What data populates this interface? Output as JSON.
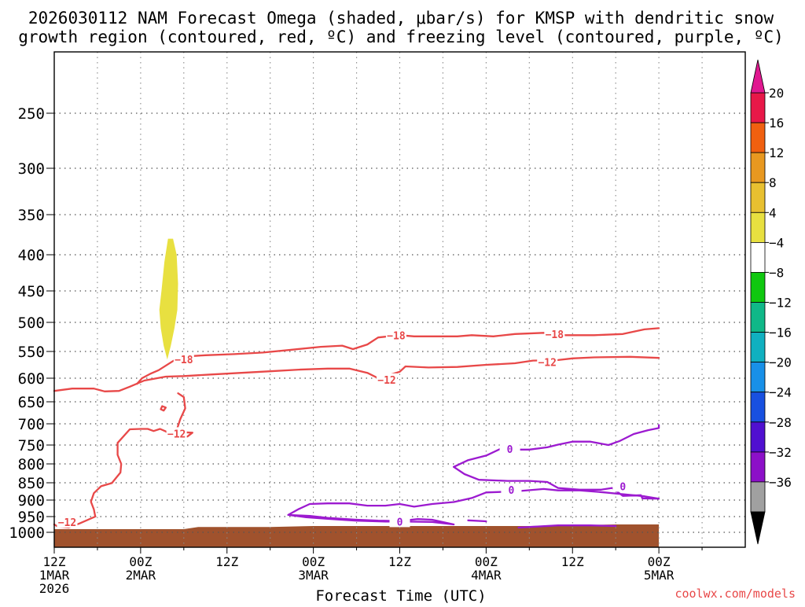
{
  "chart_data": {
    "type": "time-height contour",
    "title_line1": "2026030112 NAM Forecast Omega (shaded, μbar/s) for KMSP with dendritic snow",
    "title_line2": "growth region (contoured, red, ºC) and freezing level (contoured, purple, ºC)",
    "xlabel": "Forecast Time (UTC)",
    "ylabel": "",
    "credit": "coolwx.com/models",
    "x_range_hours": [
      0,
      96
    ],
    "x_ticks": [
      {
        "hour": 0,
        "label": [
          "12Z",
          "1MAR",
          "2026"
        ]
      },
      {
        "hour": 12,
        "label": [
          "00Z",
          "2MAR"
        ]
      },
      {
        "hour": 24,
        "label": [
          "12Z"
        ]
      },
      {
        "hour": 36,
        "label": [
          "00Z",
          "3MAR"
        ]
      },
      {
        "hour": 48,
        "label": [
          "12Z"
        ]
      },
      {
        "hour": 60,
        "label": [
          "00Z",
          "4MAR"
        ]
      },
      {
        "hour": 72,
        "label": [
          "12Z"
        ]
      },
      {
        "hour": 84,
        "label": [
          "00Z",
          "5MAR"
        ]
      }
    ],
    "x_minor_hours": [
      6,
      18,
      30,
      42,
      54,
      66,
      78,
      90
    ],
    "y_range_hpa": [
      1050,
      200
    ],
    "y_ticks": [
      250,
      300,
      350,
      400,
      450,
      500,
      550,
      600,
      650,
      700,
      750,
      800,
      850,
      900,
      950,
      1000
    ],
    "colorbar": {
      "labels": [
        "20",
        "16",
        "12",
        "8",
        "4",
        "−4",
        "−8",
        "−12",
        "−16",
        "−20",
        "−24",
        "−28",
        "−32",
        "−36"
      ],
      "colors": [
        "#e81848",
        "#f06010",
        "#e89820",
        "#e8c030",
        "#e8e040",
        "#ffffff",
        "#10c810",
        "#10b888",
        "#10b0c0",
        "#1890e8",
        "#1850e0",
        "#5010d0",
        "#8c10c8",
        "#a0a0a0"
      ],
      "top_arrow_color": "#e01890",
      "bottom_arrow_color": "#000000"
    },
    "shaded_regions": [
      {
        "name": "omega-4-8",
        "color": "#e8e040",
        "points": [
          [
            15.8,
            380
          ],
          [
            16.5,
            380
          ],
          [
            17.0,
            400
          ],
          [
            17.2,
            440
          ],
          [
            17.1,
            480
          ],
          [
            16.7,
            510
          ],
          [
            16.2,
            540
          ],
          [
            15.7,
            565
          ],
          [
            15.2,
            540
          ],
          [
            14.8,
            510
          ],
          [
            14.6,
            480
          ],
          [
            14.9,
            450
          ],
          [
            15.3,
            410
          ]
        ]
      }
    ],
    "contours": [
      {
        "name": "temp-minus18",
        "color": "#e84848",
        "value": -18,
        "points": [
          [
            11.5,
            612
          ],
          [
            12.2,
            600
          ],
          [
            13.3,
            592
          ],
          [
            14.5,
            585
          ],
          [
            16.5,
            568
          ],
          [
            17.5,
            560
          ],
          [
            21.0,
            557
          ],
          [
            25.0,
            555
          ],
          [
            29.0,
            552
          ],
          [
            33.0,
            547
          ],
          [
            37.0,
            542
          ],
          [
            40.0,
            540
          ],
          [
            41.5,
            546
          ],
          [
            43.5,
            538
          ],
          [
            45.0,
            526
          ],
          [
            48.0,
            522
          ],
          [
            50.0,
            524
          ],
          [
            53.0,
            524
          ],
          [
            56.0,
            524
          ],
          [
            58.0,
            522
          ],
          [
            61.0,
            524
          ],
          [
            64.0,
            520
          ],
          [
            68.0,
            518
          ],
          [
            71.0,
            522
          ],
          [
            75.0,
            522
          ],
          [
            79.0,
            520
          ],
          [
            82.0,
            512
          ],
          [
            84.0,
            510
          ],
          [
            84.0,
            510
          ]
        ],
        "labels": [
          {
            "text": "−18",
            "hour": 18.0,
            "hpa": 565
          },
          {
            "text": "−18",
            "hour": 47.5,
            "hpa": 522
          },
          {
            "text": "−18",
            "hour": 69.5,
            "hpa": 520
          }
        ]
      },
      {
        "name": "temp-minus12",
        "color": "#e84848",
        "value": -12,
        "points": [
          [
            0,
            627
          ],
          [
            2.5,
            622
          ],
          [
            5.5,
            622
          ],
          [
            7.0,
            628
          ],
          [
            9.0,
            627
          ],
          [
            10.5,
            618
          ],
          [
            12.5,
            605
          ],
          [
            15.5,
            597
          ],
          [
            18.0,
            596
          ],
          [
            22.0,
            593
          ],
          [
            26.0,
            590
          ],
          [
            30.0,
            587
          ],
          [
            34.0,
            584
          ],
          [
            38.0,
            582
          ],
          [
            41.0,
            582
          ],
          [
            43.5,
            590
          ],
          [
            45.0,
            600
          ],
          [
            48.0,
            588
          ],
          [
            48.8,
            578
          ],
          [
            52.0,
            580
          ],
          [
            56.0,
            579
          ],
          [
            60.0,
            575
          ],
          [
            64.0,
            572
          ],
          [
            66.5,
            567
          ],
          [
            70.0,
            566
          ],
          [
            72.0,
            563
          ],
          [
            75.0,
            561
          ],
          [
            80.0,
            560
          ],
          [
            84.0,
            562
          ]
        ],
        "labels": [
          {
            "text": "−12",
            "hour": 46.2,
            "hpa": 603
          },
          {
            "text": "−12",
            "hour": 68.5,
            "hpa": 570
          }
        ]
      },
      {
        "name": "temp-minus12-lower",
        "color": "#e84848",
        "value": -12,
        "points": [
          [
            17.2,
            632
          ],
          [
            18.0,
            640
          ],
          [
            18.2,
            665
          ],
          [
            17.5,
            690
          ],
          [
            17.0,
            715
          ],
          [
            18.0,
            720
          ],
          [
            19.2,
            721
          ],
          [
            18.5,
            730
          ],
          [
            17.0,
            730
          ],
          [
            16.2,
            725
          ],
          [
            15.5,
            718
          ],
          [
            14.7,
            712
          ],
          [
            13.8,
            717
          ],
          [
            13.0,
            712
          ],
          [
            12.0,
            712
          ],
          [
            10.5,
            713
          ],
          [
            8.8,
            745
          ],
          [
            8.8,
            776
          ],
          [
            9.3,
            800
          ],
          [
            9.2,
            823
          ],
          [
            8.0,
            851
          ],
          [
            6.5,
            860
          ],
          [
            5.5,
            880
          ],
          [
            5.1,
            905
          ],
          [
            5.5,
            928
          ],
          [
            5.7,
            950
          ],
          [
            3.5,
            972
          ],
          [
            2.0,
            985
          ],
          [
            0.5,
            982
          ],
          [
            0.0,
            975
          ]
        ],
        "labels": [
          {
            "text": "−12",
            "hour": 1.8,
            "hpa": 968
          },
          {
            "text": "−12",
            "hour": 17.0,
            "hpa": 723
          }
        ]
      },
      {
        "name": "temp-minus12-dot",
        "color": "#e84848",
        "value": -12,
        "points": [
          [
            15.0,
            660
          ],
          [
            15.5,
            663
          ],
          [
            15.2,
            670
          ],
          [
            14.8,
            667
          ],
          [
            15.0,
            660
          ]
        ],
        "labels": []
      },
      {
        "name": "freezing-upper",
        "color": "#9c1ad0",
        "value": 0,
        "points": [
          [
            55.5,
            808
          ],
          [
            57.5,
            790
          ],
          [
            60.0,
            778
          ],
          [
            62.0,
            760
          ],
          [
            64.5,
            762
          ],
          [
            66.0,
            762
          ],
          [
            68.5,
            756
          ],
          [
            70.0,
            749
          ],
          [
            72.0,
            742
          ],
          [
            74.5,
            742
          ],
          [
            77.0,
            750
          ],
          [
            78.5,
            741
          ],
          [
            80.5,
            724
          ],
          [
            82.5,
            715
          ],
          [
            84.0,
            710
          ],
          [
            84.0,
            710
          ],
          [
            84.0,
            703
          ]
        ],
        "labels": [
          {
            "text": "0",
            "hour": 63.3,
            "hpa": 760
          }
        ]
      },
      {
        "name": "freezing-lower",
        "color": "#9c1ad0",
        "value": 0,
        "points": [
          [
            55.5,
            808
          ],
          [
            57.0,
            827
          ],
          [
            59.0,
            842
          ],
          [
            63.0,
            845
          ],
          [
            66.0,
            845
          ],
          [
            68.5,
            848
          ],
          [
            70.0,
            865
          ],
          [
            73.0,
            870
          ],
          [
            76.0,
            870
          ],
          [
            77.5,
            865
          ],
          [
            79.0,
            888
          ],
          [
            81.5,
            886
          ],
          [
            81.7,
            895
          ],
          [
            84.0,
            896
          ],
          [
            82.0,
            889
          ],
          [
            78.5,
            882
          ],
          [
            76.5,
            878
          ],
          [
            73.0,
            872
          ],
          [
            70.0,
            872
          ],
          [
            68.0,
            868
          ],
          [
            64.0,
            875
          ],
          [
            60.0,
            878
          ],
          [
            58.0,
            894
          ],
          [
            55.5,
            906
          ],
          [
            52.5,
            912
          ],
          [
            50.0,
            920
          ],
          [
            48.0,
            912
          ],
          [
            46.0,
            917
          ],
          [
            43.5,
            917
          ],
          [
            41.0,
            910
          ],
          [
            38.0,
            910
          ],
          [
            35.5,
            912
          ],
          [
            34.0,
            927
          ],
          [
            32.5,
            945
          ],
          [
            35.5,
            948
          ],
          [
            38.0,
            954
          ],
          [
            42.0,
            960
          ],
          [
            45.0,
            963
          ],
          [
            48.0,
            964
          ],
          [
            50.5,
            958
          ],
          [
            52.5,
            960
          ],
          [
            55.5,
            975
          ],
          [
            52.5,
            967
          ],
          [
            49.0,
            966
          ],
          [
            46.0,
            966
          ],
          [
            42.0,
            963
          ],
          [
            38.0,
            957
          ],
          [
            35.0,
            952
          ],
          [
            32.5,
            945
          ]
        ],
        "labels": [
          {
            "text": "0",
            "hour": 48.0,
            "hpa": 966
          },
          {
            "text": "0",
            "hour": 63.5,
            "hpa": 870
          },
          {
            "text": "0",
            "hour": 79.0,
            "hpa": 860
          }
        ]
      },
      {
        "name": "freezing-dash",
        "color": "#9c1ad0",
        "value": 0,
        "points": [
          [
            57.5,
            962
          ],
          [
            60.0,
            965
          ]
        ],
        "labels": []
      },
      {
        "name": "freezing-surface",
        "color": "#9c1ad0",
        "value": 0,
        "points": [
          [
            64.5,
            985
          ],
          [
            70.0,
            978
          ],
          [
            74.5,
            978
          ],
          [
            78.0,
            980
          ]
        ],
        "labels": []
      }
    ],
    "terrain": {
      "color": "#a0522d",
      "surface_hpa": [
        [
          0,
          990
        ],
        [
          12,
          990
        ],
        [
          18,
          990
        ],
        [
          20,
          983
        ],
        [
          30,
          983
        ],
        [
          36,
          980
        ],
        [
          48,
          980
        ],
        [
          60,
          980
        ],
        [
          66,
          980
        ],
        [
          70,
          978
        ],
        [
          78,
          975
        ],
        [
          84,
          975
        ]
      ]
    }
  }
}
